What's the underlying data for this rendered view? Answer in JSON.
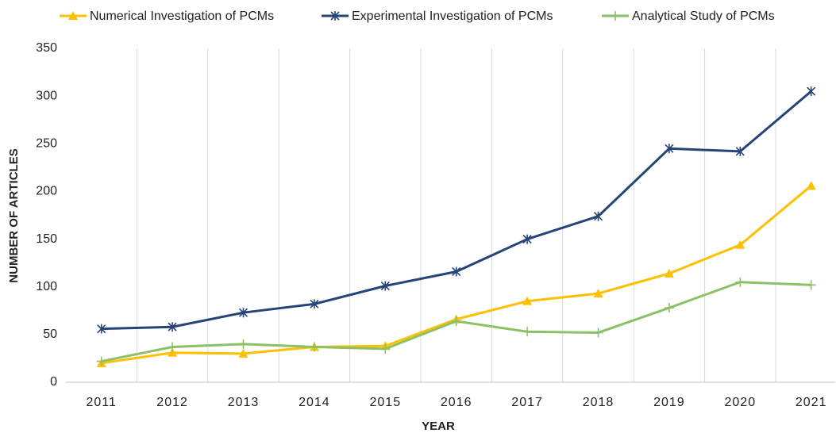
{
  "chart_data": {
    "type": "line",
    "x_label": "YEAR",
    "y_label": "NUMBER OF ARTICLES",
    "categories": [
      "2011",
      "2012",
      "2013",
      "2014",
      "2015",
      "2016",
      "2017",
      "2018",
      "2019",
      "2020",
      "2021"
    ],
    "series": [
      {
        "name": "Numerical Investigation of PCMs",
        "color": "#ffc000",
        "marker": "triangle",
        "values": [
          20,
          31,
          30,
          37,
          38,
          66,
          85,
          93,
          114,
          144,
          206
        ]
      },
      {
        "name": "Experimental Investigation of PCMs",
        "color": "#264478",
        "marker": "star",
        "values": [
          56,
          58,
          73,
          82,
          101,
          116,
          150,
          174,
          245,
          242,
          305
        ]
      },
      {
        "name": "Analytical Study of PCMs",
        "color": "#8cc168",
        "marker": "plus",
        "values": [
          22,
          37,
          40,
          37,
          35,
          64,
          53,
          52,
          78,
          105,
          102
        ]
      }
    ],
    "ylim": [
      0,
      350
    ],
    "yticks": [
      0,
      50,
      100,
      150,
      200,
      250,
      300,
      350
    ],
    "grid": "x",
    "legend": "top"
  }
}
